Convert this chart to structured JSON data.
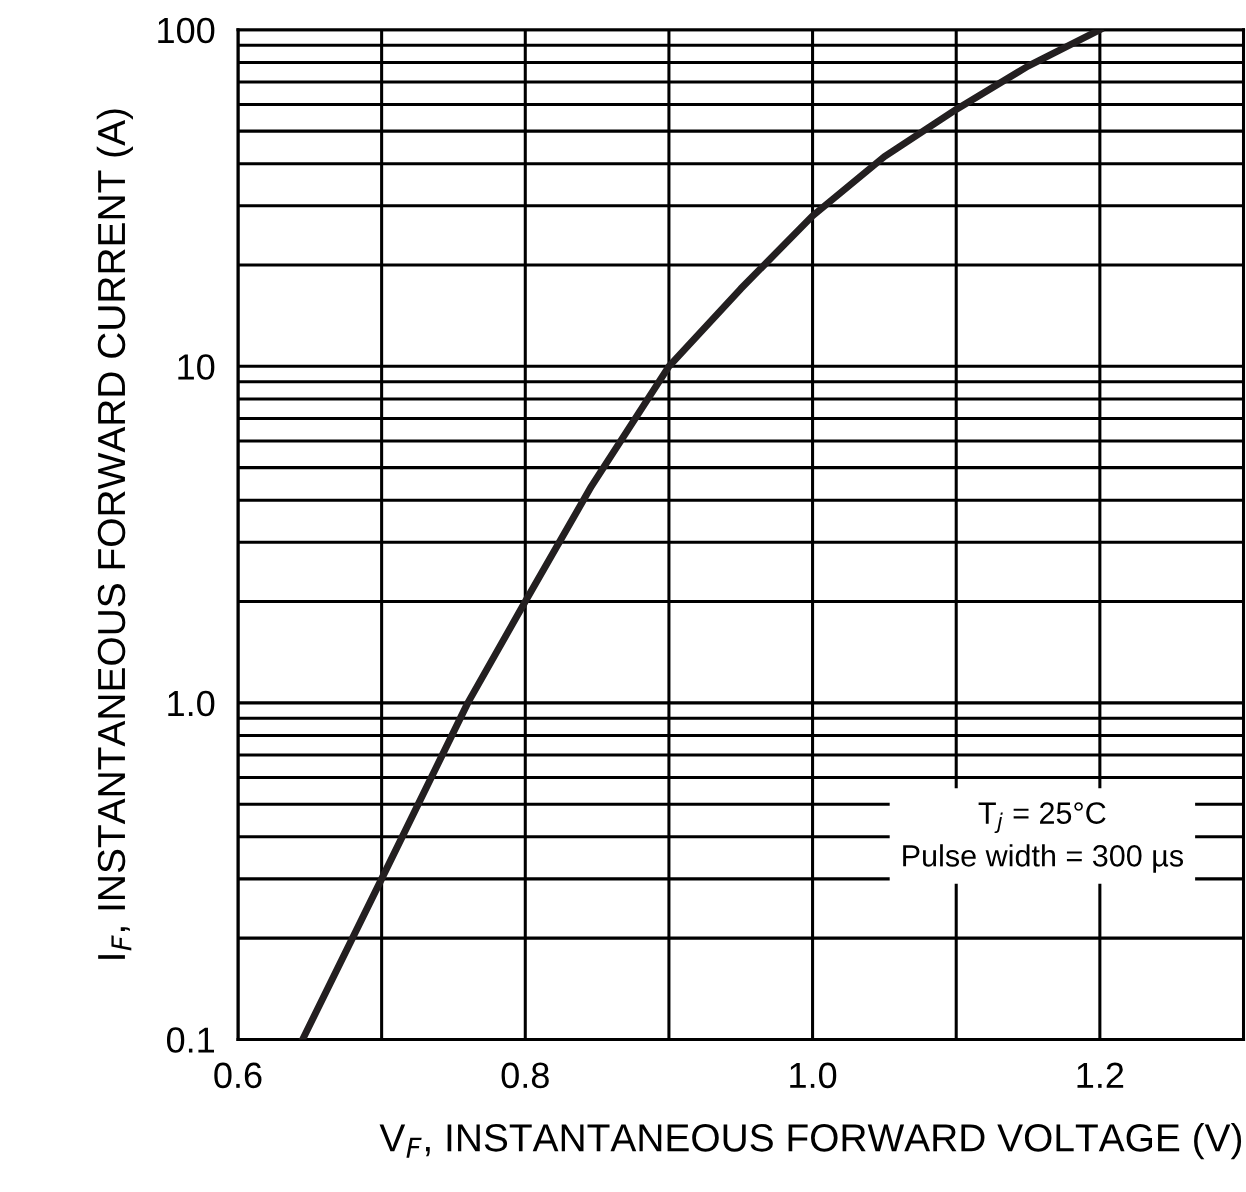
{
  "chart_data": {
    "type": "line",
    "xlabel": "V$_{F}$, INSTANTANEOUS FORWARD VOLTAGE (V)",
    "ylabel": "I$_{F}$, INSTANTANEOUS FORWARD CURRENT (A)",
    "x": [
      0.645,
      0.7,
      0.76,
      0.8,
      0.846,
      0.9,
      0.95,
      1.0,
      1.05,
      1.1,
      1.15,
      1.2
    ],
    "series": [
      {
        "color": "#231f20",
        "values": [
          0.1,
          0.3,
          1.0,
          2.0,
          4.4,
          10,
          17,
          28,
          42,
          58,
          78,
          100
        ]
      }
    ],
    "log": "y",
    "xlim": [
      0.6,
      1.3
    ],
    "ylim": [
      0.1,
      100
    ],
    "xticks": [
      0.6,
      {
        "value": 0.7,
        "label": null
      },
      0.8,
      {
        "value": 0.9,
        "label": null
      },
      {
        "value": 1.0,
        "label": "1.0"
      },
      {
        "value": 1.1,
        "label": null
      },
      1.2
    ],
    "yticks": [
      0.1,
      {
        "value": 0.2,
        "label": null
      },
      {
        "value": 0.3,
        "label": null
      },
      {
        "value": 0.4,
        "label": null
      },
      {
        "value": 0.5,
        "label": null
      },
      {
        "value": 0.6,
        "label": null
      },
      {
        "value": 0.7,
        "label": null
      },
      {
        "value": 0.8,
        "label": null
      },
      {
        "value": 0.9,
        "label": null
      },
      {
        "value": 1,
        "label": "1.0"
      },
      {
        "value": 2,
        "label": null
      },
      {
        "value": 3,
        "label": null
      },
      {
        "value": 4,
        "label": null
      },
      {
        "value": 5,
        "label": null
      },
      {
        "value": 6,
        "label": null
      },
      {
        "value": 7,
        "label": null
      },
      {
        "value": 8,
        "label": null
      },
      {
        "value": 9,
        "label": null
      },
      10,
      {
        "value": 20,
        "label": null
      },
      {
        "value": 30,
        "label": null
      },
      {
        "value": 40,
        "label": null
      },
      {
        "value": 50,
        "label": null
      },
      {
        "value": 60,
        "label": null
      },
      {
        "value": 70,
        "label": null
      },
      {
        "value": 80,
        "label": null
      },
      {
        "value": 90,
        "label": null
      },
      100
    ],
    "grid": true,
    "legend": false,
    "marker": "none",
    "line_style": "solid",
    "annotations": [
      "T$_{j}$ = 25°C\nPulse width = 300 µs"
    ]
  }
}
